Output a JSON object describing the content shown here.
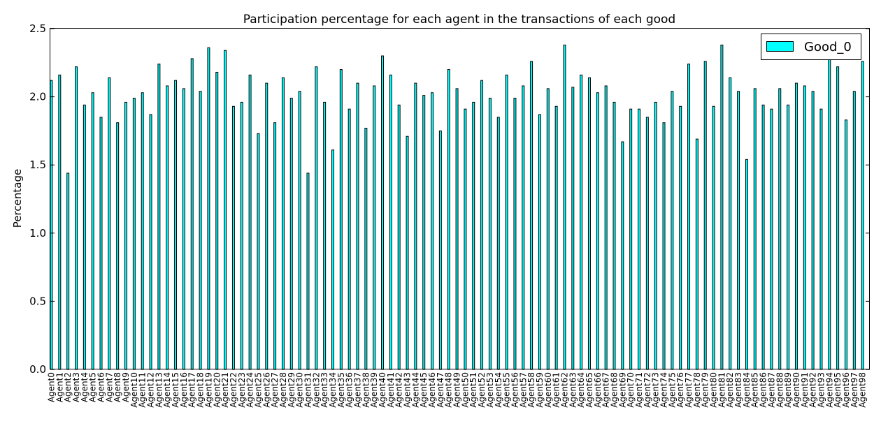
{
  "chart_data": {
    "type": "bar",
    "title": "Participation percentage for each agent in the transactions of each good",
    "xlabel": "",
    "ylabel": "Percentage",
    "ylim": [
      0.0,
      2.5
    ],
    "yticks": [
      "0.0",
      "0.5",
      "1.0",
      "1.5",
      "2.0",
      "2.5"
    ],
    "legend_position": "top-right",
    "grid": false,
    "categories": [
      "Agent0",
      "Agent1",
      "Agent2",
      "Agent3",
      "Agent4",
      "Agent5",
      "Agent6",
      "Agent7",
      "Agent8",
      "Agent9",
      "Agent10",
      "Agent11",
      "Agent12",
      "Agent13",
      "Agent14",
      "Agent15",
      "Agent16",
      "Agent17",
      "Agent18",
      "Agent19",
      "Agent20",
      "Agent21",
      "Agent22",
      "Agent23",
      "Agent24",
      "Agent25",
      "Agent26",
      "Agent27",
      "Agent28",
      "Agent29",
      "Agent30",
      "Agent31",
      "Agent32",
      "Agent33",
      "Agent34",
      "Agent35",
      "Agent36",
      "Agent37",
      "Agent38",
      "Agent39",
      "Agent40",
      "Agent41",
      "Agent42",
      "Agent43",
      "Agent44",
      "Agent45",
      "Agent46",
      "Agent47",
      "Agent48",
      "Agent49",
      "Agent50",
      "Agent51",
      "Agent52",
      "Agent53",
      "Agent54",
      "Agent55",
      "Agent56",
      "Agent57",
      "Agent58",
      "Agent59",
      "Agent60",
      "Agent61",
      "Agent62",
      "Agent63",
      "Agent64",
      "Agent65",
      "Agent66",
      "Agent67",
      "Agent68",
      "Agent69",
      "Agent70",
      "Agent71",
      "Agent72",
      "Agent73",
      "Agent74",
      "Agent75",
      "Agent76",
      "Agent77",
      "Agent78",
      "Agent79",
      "Agent80",
      "Agent81",
      "Agent82",
      "Agent83",
      "Agent84",
      "Agent85",
      "Agent86",
      "Agent87",
      "Agent88",
      "Agent89",
      "Agent90",
      "Agent91",
      "Agent92",
      "Agent93",
      "Agent94",
      "Agent95",
      "Agent96",
      "Agent97",
      "Agent98"
    ],
    "series": [
      {
        "name": "Good_0",
        "color": "#00ffff",
        "values": [
          2.12,
          2.16,
          1.44,
          2.22,
          1.94,
          2.03,
          1.85,
          2.14,
          1.81,
          1.96,
          1.99,
          2.03,
          1.87,
          2.24,
          2.08,
          2.12,
          2.06,
          2.28,
          2.04,
          2.36,
          2.18,
          2.34,
          1.93,
          1.96,
          2.16,
          1.73,
          2.1,
          1.81,
          2.14,
          1.99,
          2.04,
          1.44,
          2.22,
          1.96,
          1.61,
          2.2,
          1.91,
          2.1,
          1.77,
          2.08,
          2.3,
          2.16,
          1.94,
          1.71,
          2.1,
          2.01,
          2.03,
          1.75,
          2.2,
          2.06,
          1.91,
          1.96,
          2.12,
          1.99,
          1.85,
          2.16,
          1.99,
          2.08,
          2.26,
          1.87,
          2.06,
          1.93,
          2.38,
          2.07,
          2.16,
          2.14,
          2.03,
          2.08,
          1.96,
          1.67,
          1.91,
          1.91,
          1.85,
          1.96,
          1.81,
          2.04,
          1.93,
          2.24,
          1.69,
          2.26,
          1.93,
          2.38,
          2.14,
          2.04,
          1.54,
          2.06,
          1.94,
          1.91,
          2.06,
          1.94,
          2.1,
          2.08,
          2.04,
          1.91,
          2.29,
          2.22,
          1.83,
          2.04,
          2.26
        ]
      }
    ]
  }
}
